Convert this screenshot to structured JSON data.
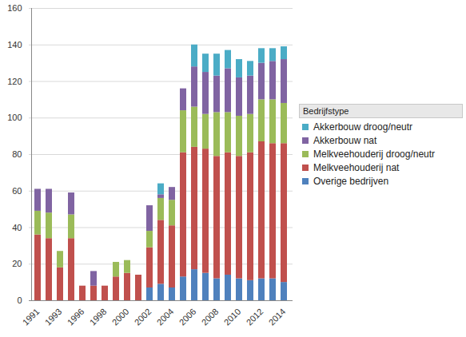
{
  "chart_data": {
    "type": "bar",
    "stacked": true,
    "grid": true,
    "legend": "right",
    "legend_title": "Bedrijfstype",
    "categories": [
      "1991",
      null,
      "1993",
      null,
      "1996",
      null,
      "1998",
      null,
      "2000",
      null,
      "2002",
      null,
      "2004",
      null,
      "2006",
      null,
      "2008",
      null,
      "2010",
      null,
      "2012",
      null,
      "2014"
    ],
    "ylim": [
      0,
      160
    ],
    "yticks": [
      0,
      20,
      40,
      60,
      80,
      100,
      120,
      140,
      160
    ],
    "series": [
      {
        "name": "Overige bedrijven",
        "color": "#4f81bd",
        "values": [
          0,
          0,
          0,
          0,
          0,
          0,
          0,
          0,
          0,
          0,
          7,
          9,
          7,
          13,
          17,
          15,
          12,
          14,
          12,
          11,
          12,
          12,
          10
        ]
      },
      {
        "name": "Melkveehouderij nat",
        "color": "#c0504d",
        "values": [
          36,
          34,
          18,
          34,
          8,
          8,
          8,
          13,
          15,
          14,
          22,
          35,
          34,
          68,
          67,
          68,
          67,
          67,
          67,
          70,
          75,
          74,
          76
        ]
      },
      {
        "name": "Melkveehouderij droog/neutr",
        "color": "#9bbb59",
        "values": [
          13,
          14,
          9,
          13,
          0,
          0,
          0,
          8,
          7,
          0,
          9,
          12,
          14,
          23,
          22,
          19,
          24,
          22,
          22,
          21,
          23,
          24,
          22
        ]
      },
      {
        "name": "Akkerbouw nat",
        "color": "#8064a2",
        "values": [
          12,
          13,
          0,
          12,
          0,
          8,
          0,
          0,
          0,
          0,
          14,
          2,
          7,
          12,
          22,
          23,
          20,
          24,
          21,
          21,
          20,
          21,
          24
        ]
      },
      {
        "name": "Akkerbouw droog/neutr",
        "color": "#4bacc6",
        "values": [
          0,
          0,
          0,
          0,
          0,
          0,
          0,
          0,
          0,
          0,
          0,
          6,
          0,
          0,
          12,
          10,
          12,
          10,
          10,
          8,
          8,
          7,
          7
        ]
      }
    ]
  }
}
